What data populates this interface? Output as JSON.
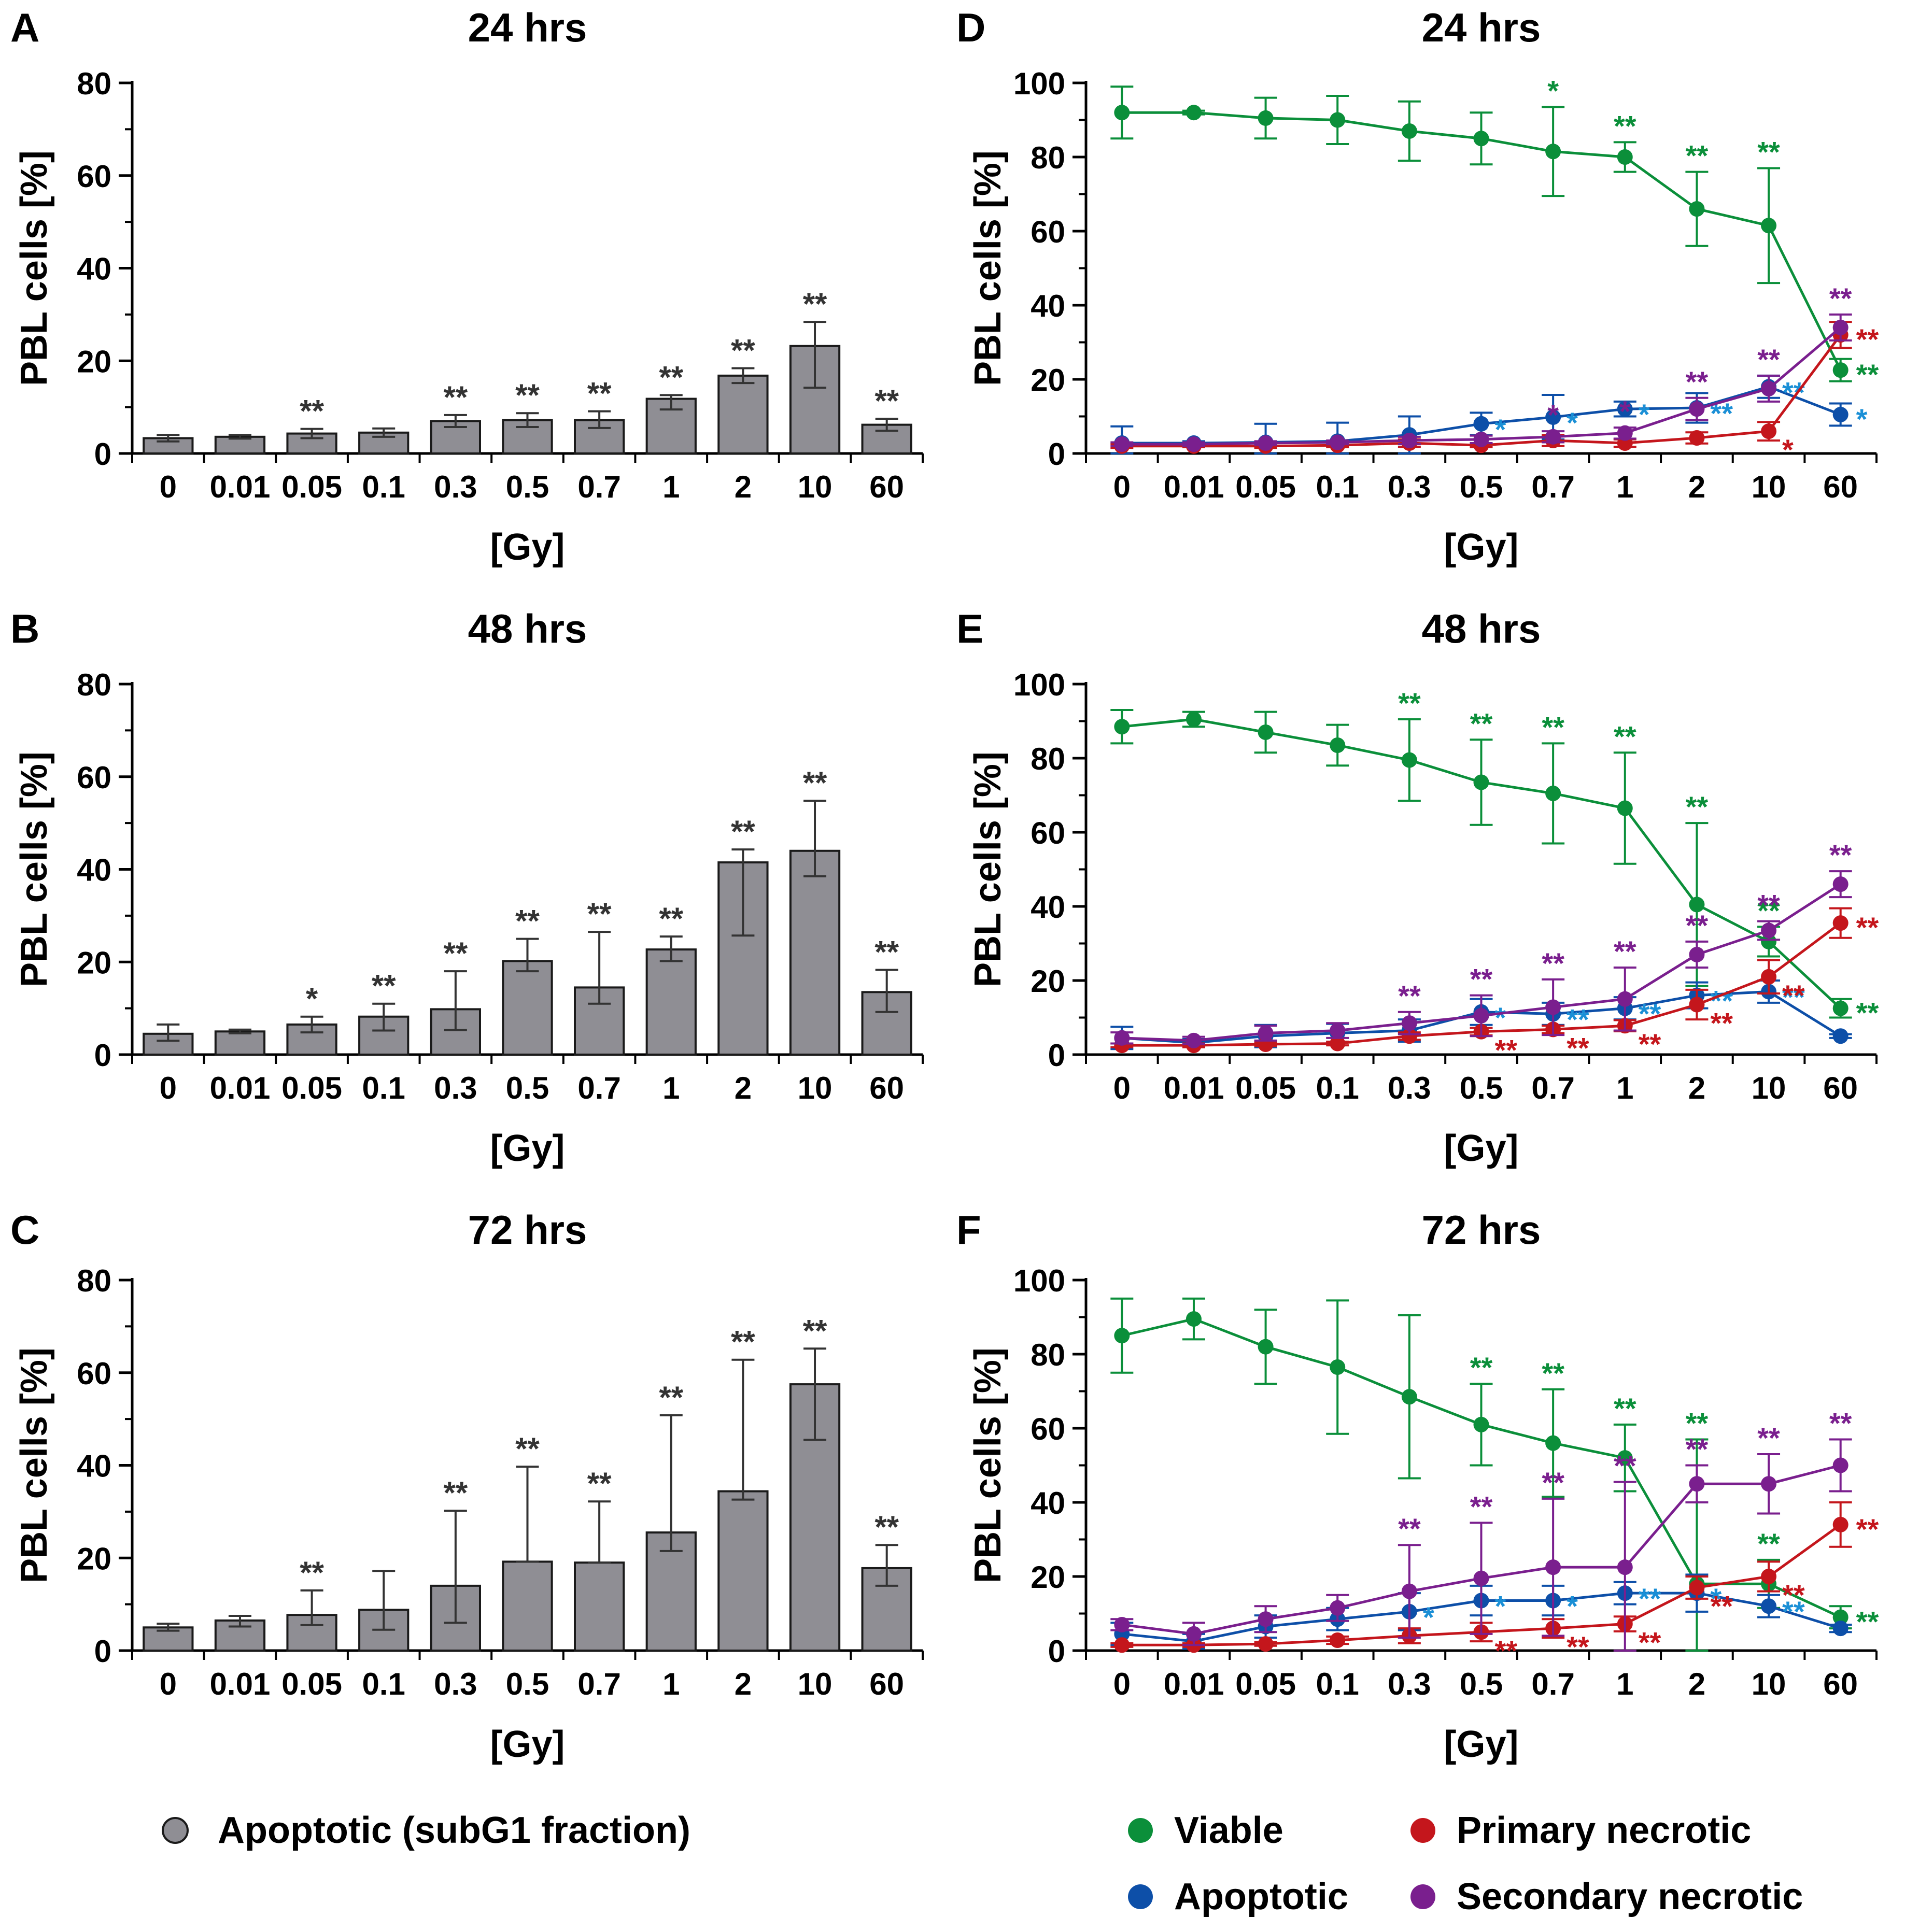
{
  "colors": {
    "axis": "#000000",
    "bar_fill": "#8f8e94",
    "bar_stroke": "#1a1a1a",
    "errorbar": "#333333",
    "bar_star": "#333333",
    "viable": "#0b8f3a",
    "apoptotic": "#0d4fa8",
    "primary_necrotic": "#c4161c",
    "secondary_necrotic": "#7a1f8e",
    "star_apoptotic_text": "#1a8fd6"
  },
  "legend_left": {
    "label": "Apoptotic (subG1 fraction)"
  },
  "legend_right": {
    "viable": "Viable",
    "apoptotic": "Apoptotic",
    "primary_necrotic": "Primary necrotic",
    "secondary_necrotic": "Secondary necrotic"
  },
  "chart_data": [
    {
      "panel": "A",
      "type": "bar",
      "title": "24 hrs",
      "xlabel": "[Gy]",
      "ylabel": "PBL cells [%]",
      "ylim": [
        0,
        80
      ],
      "yticks": [
        0,
        20,
        40,
        60,
        80
      ],
      "categories": [
        "0",
        "0.01",
        "0.05",
        "0.1",
        "0.3",
        "0.5",
        "0.7",
        "1",
        "2",
        "10",
        "60"
      ],
      "values": [
        3.3,
        3.6,
        4.3,
        4.5,
        7.0,
        7.2,
        7.2,
        11.8,
        16.8,
        23.2,
        6.2
      ],
      "err_low": [
        0.7,
        0.4,
        1.0,
        0.9,
        1.3,
        1.5,
        1.7,
        2.3,
        1.6,
        9.0,
        1.3
      ],
      "err_high": [
        0.7,
        0.4,
        1.0,
        0.9,
        1.3,
        1.5,
        1.9,
        0.8,
        1.6,
        5.2,
        1.3
      ],
      "stars": [
        "",
        "",
        "**",
        "",
        "**",
        "**",
        "**",
        "**",
        "**",
        "**",
        "**"
      ]
    },
    {
      "panel": "B",
      "type": "bar",
      "title": "48 hrs",
      "xlabel": "[Gy]",
      "ylabel": "PBL cells [%]",
      "ylim": [
        0,
        80
      ],
      "yticks": [
        0,
        20,
        40,
        60,
        80
      ],
      "categories": [
        "0",
        "0.01",
        "0.05",
        "0.1",
        "0.3",
        "0.5",
        "0.7",
        "1",
        "2",
        "10",
        "60"
      ],
      "values": [
        4.5,
        5.0,
        6.5,
        8.2,
        9.8,
        20.2,
        14.5,
        22.7,
        41.5,
        44.0,
        13.5
      ],
      "err_low": [
        1.5,
        0.4,
        1.7,
        3.0,
        4.5,
        2.2,
        3.5,
        2.5,
        15.8,
        5.5,
        4.3
      ],
      "err_high": [
        2.0,
        0.4,
        1.7,
        2.8,
        8.2,
        4.8,
        12.0,
        2.8,
        2.8,
        10.8,
        4.8
      ],
      "stars": [
        "",
        "",
        "*",
        "**",
        "**",
        "**",
        "**",
        "**",
        "**",
        "**",
        "**"
      ]
    },
    {
      "panel": "C",
      "type": "bar",
      "title": "72 hrs",
      "xlabel": "[Gy]",
      "ylabel": "PBL cells [%]",
      "ylim": [
        0,
        80
      ],
      "yticks": [
        0,
        20,
        40,
        60,
        80
      ],
      "categories": [
        "0",
        "0.01",
        "0.05",
        "0.1",
        "0.3",
        "0.5",
        "0.7",
        "1",
        "2",
        "10",
        "60"
      ],
      "values": [
        5.0,
        6.5,
        7.7,
        8.8,
        14.0,
        19.2,
        19.0,
        25.5,
        34.4,
        57.5,
        17.8
      ],
      "err_low": [
        0.7,
        1.3,
        2.2,
        4.3,
        8.0,
        0.0,
        0.0,
        4.0,
        1.8,
        12.0,
        3.8
      ],
      "err_high": [
        0.8,
        1.0,
        5.3,
        8.4,
        16.2,
        20.5,
        13.2,
        25.3,
        28.4,
        7.7,
        5.0
      ],
      "stars": [
        "",
        "",
        "**",
        "",
        "**",
        "**",
        "**",
        "**",
        "**",
        "**",
        "**"
      ]
    },
    {
      "panel": "D",
      "type": "line",
      "title": "24 hrs",
      "xlabel": "[Gy]",
      "ylabel": "PBL cells [%]",
      "ylim": [
        0,
        100
      ],
      "yticks": [
        0,
        20,
        40,
        60,
        80,
        100
      ],
      "categories": [
        "0",
        "0.01",
        "0.05",
        "0.1",
        "0.3",
        "0.5",
        "0.7",
        "1",
        "2",
        "10",
        "60"
      ],
      "series": [
        {
          "name": "Viable",
          "color_key": "viable",
          "values": [
            92,
            92,
            90.5,
            90,
            87,
            85,
            81.5,
            80,
            66,
            61.5,
            22.5
          ],
          "err": [
            7,
            0.5,
            5.5,
            6.5,
            8,
            7,
            12,
            4,
            10,
            15.5,
            3
          ],
          "stars": [
            "",
            "",
            "",
            "",
            "",
            "",
            "*",
            "**",
            "**",
            "**",
            "**"
          ]
        },
        {
          "name": "Apoptotic",
          "color_key": "apoptotic",
          "values": [
            2.8,
            2.8,
            3.0,
            3.3,
            5.0,
            8.0,
            9.8,
            12.0,
            12.3,
            18.0,
            10.5
          ],
          "err": [
            4.5,
            0.5,
            5.0,
            5.0,
            5.0,
            3.0,
            6.0,
            2.0,
            4.0,
            3.0,
            3.0
          ],
          "stars": [
            "",
            "",
            "",
            "",
            "",
            "*",
            "*",
            "*",
            "**",
            "**",
            "*"
          ]
        },
        {
          "name": "Primary necrotic",
          "color_key": "primary_necrotic",
          "values": [
            2.0,
            2.0,
            2.0,
            2.2,
            2.8,
            2.2,
            3.5,
            2.8,
            4.2,
            6.0,
            32.0
          ],
          "err": [
            0.5,
            0.3,
            0.5,
            0.5,
            1.0,
            0.5,
            1.5,
            1.0,
            1.5,
            2.5,
            3.5
          ],
          "stars": [
            "",
            "",
            "",
            "",
            "",
            "",
            "",
            "",
            "",
            "*",
            "**"
          ]
        },
        {
          "name": "Secondary necrotic",
          "color_key": "secondary_necrotic",
          "values": [
            2.5,
            2.5,
            2.8,
            3.0,
            3.5,
            3.8,
            4.5,
            5.5,
            12.0,
            17.5,
            34.0
          ],
          "err": [
            0.5,
            0.5,
            0.5,
            0.5,
            1.0,
            1.0,
            1.5,
            1.5,
            3.0,
            3.5,
            3.5
          ],
          "stars": [
            "",
            "",
            "",
            "",
            "",
            "",
            "*",
            "*",
            "**",
            "**",
            "**"
          ]
        }
      ]
    },
    {
      "panel": "E",
      "type": "line",
      "title": "48 hrs",
      "xlabel": "[Gy]",
      "ylabel": "PBL cells [%]",
      "ylim": [
        0,
        100
      ],
      "yticks": [
        0,
        20,
        40,
        60,
        80,
        100
      ],
      "categories": [
        "0",
        "0.01",
        "0.05",
        "0.1",
        "0.3",
        "0.5",
        "0.7",
        "1",
        "2",
        "10",
        "60"
      ],
      "series": [
        {
          "name": "Viable",
          "color_key": "viable",
          "values": [
            88.5,
            90.5,
            87,
            83.5,
            79.5,
            73.5,
            70.5,
            66.5,
            40.5,
            30.5,
            12.5
          ],
          "err": [
            4.5,
            2,
            5.5,
            5.5,
            11,
            11.5,
            13.5,
            15,
            22,
            4,
            2.5
          ],
          "stars": [
            "",
            "",
            "",
            "",
            "**",
            "**",
            "**",
            "**",
            "**",
            "**",
            "**"
          ]
        },
        {
          "name": "Apoptotic",
          "color_key": "apoptotic",
          "values": [
            4.5,
            3.2,
            5.0,
            5.8,
            6.5,
            11.5,
            11.0,
            12.5,
            16.0,
            17.0,
            5.0
          ],
          "err": [
            3.0,
            1.0,
            3.0,
            2.5,
            3.0,
            3.5,
            3.0,
            3.0,
            3.5,
            3.0,
            0.5
          ],
          "stars": [
            "",
            "",
            "",
            "",
            "",
            "*",
            "**",
            "**",
            "**",
            "**",
            ""
          ]
        },
        {
          "name": "Primary necrotic",
          "color_key": "primary_necrotic",
          "values": [
            2.5,
            2.5,
            2.8,
            3.0,
            5.0,
            6.2,
            6.8,
            7.8,
            13.5,
            21.0,
            35.5
          ],
          "err": [
            0.5,
            0.5,
            0.5,
            0.5,
            1.0,
            1.0,
            1.0,
            1.5,
            4.0,
            4.5,
            4.0
          ],
          "stars": [
            "",
            "",
            "",
            "",
            "",
            "**",
            "**",
            "**",
            "**",
            "**",
            "**"
          ]
        },
        {
          "name": "Secondary necrotic",
          "color_key": "secondary_necrotic",
          "values": [
            4.5,
            3.8,
            5.8,
            6.5,
            8.5,
            10.5,
            12.8,
            15.0,
            27.0,
            33.5,
            46.0
          ],
          "err": [
            1.5,
            1.0,
            2.0,
            2.0,
            3.0,
            5.5,
            7.5,
            8.5,
            3.5,
            2.5,
            3.5
          ],
          "stars": [
            "",
            "",
            "",
            "",
            "**",
            "**",
            "**",
            "**",
            "**",
            "**",
            "**"
          ]
        }
      ]
    },
    {
      "panel": "F",
      "type": "line",
      "title": "72 hrs",
      "xlabel": "[Gy]",
      "ylabel": "PBL cells [%]",
      "ylim": [
        0,
        100
      ],
      "yticks": [
        0,
        20,
        40,
        60,
        80,
        100
      ],
      "categories": [
        "0",
        "0.01",
        "0.05",
        "0.1",
        "0.3",
        "0.5",
        "0.7",
        "1",
        "2",
        "10",
        "60"
      ],
      "series": [
        {
          "name": "Viable",
          "color_key": "viable",
          "values": [
            85,
            89.5,
            82,
            76.5,
            68.5,
            61,
            56,
            52,
            18,
            18,
            9
          ],
          "err": [
            10,
            5.5,
            10,
            18,
            22,
            11,
            14.5,
            9,
            39,
            6.5,
            3
          ],
          "stars": [
            "",
            "",
            "",
            "",
            "",
            "**",
            "**",
            "**",
            "**",
            "**",
            "**"
          ]
        },
        {
          "name": "Apoptotic",
          "color_key": "apoptotic",
          "values": [
            4.5,
            2.5,
            6.5,
            8.5,
            10.5,
            13.5,
            13.5,
            15.5,
            15.5,
            12.0,
            6.0
          ],
          "err": [
            3.0,
            2.0,
            3.0,
            3.0,
            5.0,
            4.0,
            4.0,
            3.0,
            5.0,
            3.0,
            1.0
          ],
          "stars": [
            "",
            "",
            "",
            "",
            "*",
            "*",
            "*",
            "**",
            "*",
            "**",
            ""
          ]
        },
        {
          "name": "Primary necrotic",
          "color_key": "primary_necrotic",
          "values": [
            1.5,
            1.5,
            1.8,
            2.8,
            4.0,
            5.0,
            6.0,
            7.2,
            17.0,
            20.0,
            34.0
          ],
          "err": [
            0.5,
            0.5,
            0.5,
            1.0,
            2.0,
            2.5,
            2.5,
            2.0,
            3.0,
            4.0,
            6.0
          ],
          "stars": [
            "",
            "",
            "",
            "",
            "",
            "**",
            "**",
            "**",
            "**",
            "**",
            "**"
          ]
        },
        {
          "name": "Secondary necrotic",
          "color_key": "secondary_necrotic",
          "values": [
            7.0,
            4.5,
            8.5,
            11.5,
            16.0,
            19.5,
            22.5,
            22.5,
            45.0,
            45.0,
            50.0
          ],
          "err": [
            1.5,
            3.0,
            3.5,
            3.5,
            12.5,
            15.0,
            18.5,
            23.0,
            5.0,
            8.0,
            7.0
          ],
          "stars": [
            "",
            "",
            "",
            "",
            "**",
            "**",
            "**",
            "**",
            "**",
            "**",
            "**"
          ]
        }
      ]
    }
  ]
}
